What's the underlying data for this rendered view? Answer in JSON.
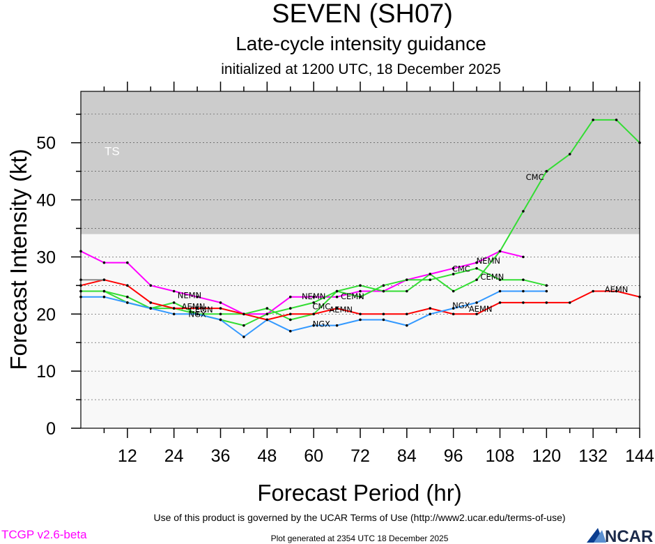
{
  "header": {
    "title": "SEVEN (SH07)",
    "subtitle": "Late-cycle intensity guidance",
    "init": "initialized at 1200 UTC, 18 December 2025"
  },
  "footer": {
    "terms": "Use of this product is governed by the UCAR Terms of Use (http://www2.ucar.edu/terms-of-use)",
    "version": "TCGP v2.6-beta",
    "generated": "Plot generated at 2354 UTC   18 December 2025",
    "logo_text": "NCAR"
  },
  "chart_data": {
    "type": "line",
    "xlabel": "Forecast Period (hr)",
    "ylabel": "Forecast Intensity (kt)",
    "xlim": [
      0,
      144
    ],
    "ylim": [
      0,
      59
    ],
    "xticks": [
      12,
      24,
      36,
      48,
      60,
      72,
      84,
      96,
      108,
      120,
      132,
      144
    ],
    "yticks": [
      0,
      10,
      20,
      30,
      40,
      50
    ],
    "band": {
      "label": "TS",
      "from": 34,
      "to": 59,
      "color": "#cccccc"
    },
    "series": [
      {
        "name": "NEMN",
        "color": "#ff00ff",
        "x": [
          0,
          6,
          12,
          18,
          24,
          30,
          36,
          42,
          48,
          54,
          60,
          66,
          72,
          78,
          84,
          90,
          96,
          102,
          108,
          114
        ],
        "y": [
          31,
          29,
          29,
          25,
          24,
          23,
          22,
          20,
          20,
          23,
          23,
          23,
          24,
          24,
          26,
          27,
          28,
          29,
          31,
          30
        ]
      },
      {
        "name": "CMC",
        "color": "#33dd33",
        "x": [
          0,
          6,
          12,
          18,
          24,
          30,
          36,
          42,
          48,
          54,
          60,
          66,
          72,
          78,
          84,
          90,
          96,
          102,
          108,
          114,
          120,
          126,
          132,
          138,
          144
        ],
        "y": [
          24,
          24,
          23,
          21,
          22,
          20,
          19,
          18,
          20,
          21,
          22,
          24,
          25,
          24,
          24,
          27,
          24,
          26,
          31,
          38,
          45,
          48,
          54,
          54,
          50
        ]
      },
      {
        "name": "CEMN",
        "color": "#33dd33",
        "x": [
          0,
          6,
          12,
          18,
          24,
          30,
          36,
          42,
          48,
          54,
          60,
          66,
          72,
          78,
          84,
          90,
          96,
          102,
          108,
          114,
          120
        ],
        "y": [
          24,
          24,
          22,
          21,
          21,
          20,
          20,
          20,
          21,
          19,
          20,
          24,
          23,
          25,
          26,
          26,
          27,
          28,
          26,
          26,
          25
        ]
      },
      {
        "name": "AEMN",
        "color": "#ff0000",
        "x": [
          0,
          6,
          12,
          18,
          24,
          30,
          36,
          42,
          48,
          54,
          60,
          66,
          72,
          78,
          84,
          90,
          96,
          102,
          108,
          114,
          120,
          126,
          132,
          138,
          144
        ],
        "y": [
          25,
          26,
          25,
          22,
          21,
          21,
          21,
          20,
          19,
          20,
          20,
          21,
          20,
          20,
          20,
          21,
          20,
          20,
          22,
          22,
          22,
          22,
          24,
          24,
          23
        ]
      },
      {
        "name": "NGX",
        "color": "#3399ff",
        "x": [
          0,
          6,
          12,
          18,
          24,
          30,
          36,
          42,
          48,
          54,
          60,
          66,
          72,
          78,
          84,
          90,
          96,
          102,
          108,
          114,
          120
        ],
        "y": [
          23,
          23,
          22,
          21,
          20,
          20,
          19,
          16,
          19,
          17,
          18,
          18,
          19,
          19,
          18,
          20,
          21,
          22,
          24,
          24,
          24
        ]
      },
      {
        "name": "",
        "color": "#888888",
        "x": [
          0,
          6
        ],
        "y": [
          26,
          26
        ]
      }
    ],
    "series_labels": [
      {
        "text": "NEMN",
        "x": 28,
        "y": 22.8
      },
      {
        "text": "NEMN",
        "x": 60,
        "y": 22.6
      },
      {
        "text": "NEMN",
        "x": 105,
        "y": 28.8
      },
      {
        "text": "CMC",
        "x": 62,
        "y": 20.8
      },
      {
        "text": "CMC",
        "x": 98,
        "y": 27.4
      },
      {
        "text": "CMC",
        "x": 117,
        "y": 43.5
      },
      {
        "text": "CEMN",
        "x": 31,
        "y": 20.3
      },
      {
        "text": "CEMN",
        "x": 70,
        "y": 22.6
      },
      {
        "text": "CEMN",
        "x": 106,
        "y": 26.0
      },
      {
        "text": "AEMN",
        "x": 29,
        "y": 20.8
      },
      {
        "text": "AEMN",
        "x": 67,
        "y": 20.3
      },
      {
        "text": "AEMN",
        "x": 103,
        "y": 20.4
      },
      {
        "text": "AEMN",
        "x": 138,
        "y": 23.8
      },
      {
        "text": "NGX",
        "x": 30,
        "y": 19.5
      },
      {
        "text": "NGX",
        "x": 62,
        "y": 17.8
      },
      {
        "text": "NGX",
        "x": 98,
        "y": 21.0
      }
    ]
  }
}
